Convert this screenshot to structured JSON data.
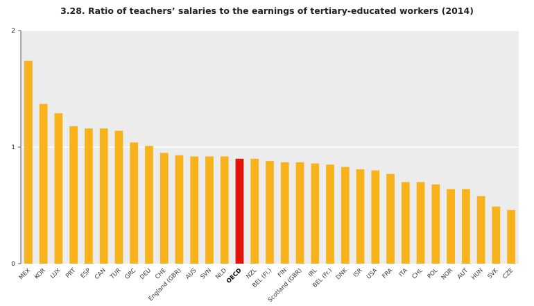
{
  "chart_data": {
    "type": "bar",
    "title": "3.28. Ratio of teachers’ salaries to the earnings of tertiary-educated workers (2014)",
    "xlabel": "",
    "ylabel": "",
    "ylim": [
      0,
      2
    ],
    "yticks": [
      0,
      1,
      2
    ],
    "grid": true,
    "highlight_category": "OECD",
    "colors": {
      "bar": "#f7b21c",
      "highlight": "#e3120b",
      "grid": "#ffffff",
      "plot_background": "#ececec"
    },
    "categories": [
      "MEX",
      "KOR",
      "LUX",
      "PRT",
      "ESP",
      "CAN",
      "TUR",
      "GRC",
      "DEU",
      "CHE",
      "England (GBR)",
      "AUS",
      "SVN",
      "NLD",
      "OECD",
      "NZL",
      "BEL (Fl.)",
      "FIN",
      "Scotland (GBR)",
      "IRL",
      "BEL (Fr.)",
      "DNK",
      "ISR",
      "USA",
      "FRA",
      "ITA",
      "CHL",
      "POL",
      "NOR",
      "AUT",
      "HUN",
      "SVK",
      "CZE"
    ],
    "values": [
      1.74,
      1.37,
      1.29,
      1.18,
      1.16,
      1.16,
      1.14,
      1.04,
      1.01,
      0.95,
      0.93,
      0.92,
      0.92,
      0.92,
      0.9,
      0.9,
      0.88,
      0.87,
      0.87,
      0.86,
      0.85,
      0.83,
      0.81,
      0.8,
      0.77,
      0.7,
      0.7,
      0.68,
      0.64,
      0.64,
      0.58,
      0.49,
      0.46
    ]
  }
}
